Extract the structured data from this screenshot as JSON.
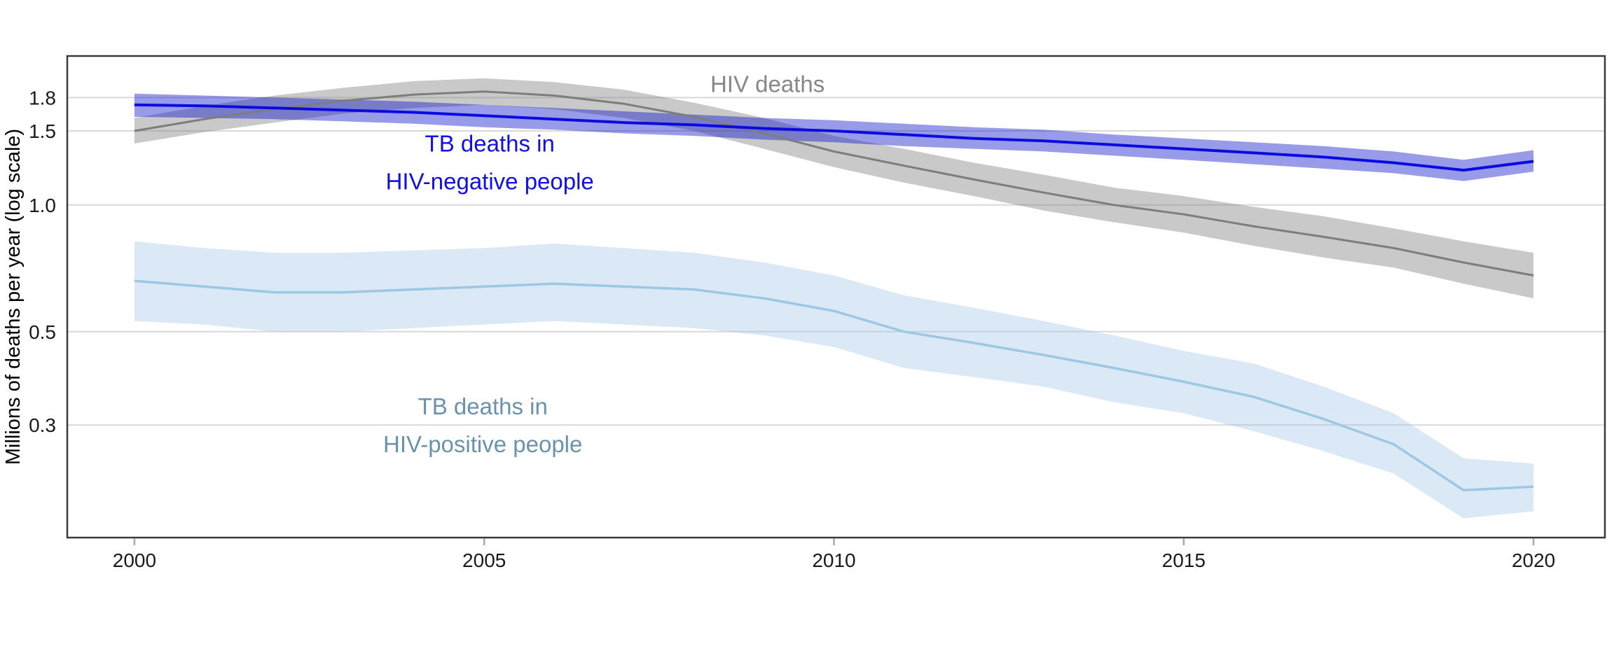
{
  "chart_data": {
    "type": "line",
    "title": "",
    "ylabel": "Millions of deaths per year (log scale)",
    "xlabel": "",
    "yscale": "log",
    "grid": "horizontal-only",
    "legend": "none-direct-labels",
    "xlim": [
      1999.04,
      2021.02
    ],
    "ylim": [
      0.162,
      2.26
    ],
    "yticks": [
      {
        "value": 1.8,
        "label": "1.8"
      },
      {
        "value": 1.5,
        "label": "1.5"
      },
      {
        "value": 1.0,
        "label": "1.0"
      },
      {
        "value": 0.5,
        "label": "0.5"
      },
      {
        "value": 0.3,
        "label": "0.3"
      }
    ],
    "xticks": [
      {
        "value": 2000,
        "label": "2000"
      },
      {
        "value": 2005,
        "label": "2005"
      },
      {
        "value": 2010,
        "label": "2010"
      },
      {
        "value": 2015,
        "label": "2015"
      },
      {
        "value": 2020,
        "label": "2020"
      }
    ],
    "x": [
      2000,
      2001,
      2002,
      2003,
      2004,
      2005,
      2006,
      2007,
      2008,
      2009,
      2010,
      2011,
      2012,
      2013,
      2014,
      2015,
      2016,
      2017,
      2018,
      2019,
      2020
    ],
    "series": [
      {
        "name": "HIV deaths",
        "line_color": "#7d7d7d",
        "band_color": "rgba(127,127,127,0.42)",
        "line_width": 3,
        "values": [
          1.5,
          1.6,
          1.69,
          1.77,
          1.83,
          1.86,
          1.82,
          1.74,
          1.62,
          1.48,
          1.34,
          1.24,
          1.15,
          1.07,
          1.0,
          0.95,
          0.89,
          0.84,
          0.79,
          0.73,
          0.68
        ],
        "lo": [
          1.4,
          1.49,
          1.57,
          1.65,
          1.7,
          1.73,
          1.69,
          1.61,
          1.5,
          1.36,
          1.23,
          1.13,
          1.05,
          0.97,
          0.91,
          0.86,
          0.8,
          0.75,
          0.71,
          0.65,
          0.6
        ],
        "hi": [
          1.61,
          1.72,
          1.82,
          1.9,
          1.97,
          2.0,
          1.96,
          1.88,
          1.75,
          1.61,
          1.46,
          1.36,
          1.26,
          1.18,
          1.1,
          1.05,
          0.99,
          0.94,
          0.88,
          0.82,
          0.77
        ]
      },
      {
        "name": "TB deaths in HIV-negative people",
        "line_color": "#0b0bdf",
        "band_color": "rgba(10,16,200,0.42)",
        "line_width": 4,
        "values": [
          1.73,
          1.72,
          1.7,
          1.68,
          1.66,
          1.63,
          1.6,
          1.57,
          1.55,
          1.52,
          1.5,
          1.47,
          1.44,
          1.42,
          1.39,
          1.36,
          1.33,
          1.3,
          1.26,
          1.21,
          1.27
        ],
        "lo": [
          1.62,
          1.61,
          1.6,
          1.58,
          1.56,
          1.53,
          1.51,
          1.48,
          1.46,
          1.43,
          1.41,
          1.38,
          1.36,
          1.34,
          1.31,
          1.28,
          1.25,
          1.22,
          1.19,
          1.14,
          1.2
        ],
        "hi": [
          1.84,
          1.82,
          1.8,
          1.78,
          1.76,
          1.73,
          1.7,
          1.67,
          1.64,
          1.61,
          1.59,
          1.56,
          1.53,
          1.51,
          1.47,
          1.44,
          1.41,
          1.38,
          1.34,
          1.28,
          1.35
        ]
      },
      {
        "name": "TB deaths in HIV-positive people",
        "line_color": "#9cc8e2",
        "band_color": "rgba(158,196,228,0.38)",
        "line_width": 3.5,
        "values": [
          0.66,
          0.64,
          0.62,
          0.62,
          0.63,
          0.64,
          0.65,
          0.64,
          0.63,
          0.6,
          0.56,
          0.5,
          0.47,
          0.44,
          0.41,
          0.38,
          0.35,
          0.31,
          0.27,
          0.21,
          0.214
        ],
        "lo": [
          0.53,
          0.52,
          0.5,
          0.5,
          0.51,
          0.52,
          0.53,
          0.52,
          0.51,
          0.49,
          0.46,
          0.41,
          0.39,
          0.37,
          0.34,
          0.32,
          0.29,
          0.26,
          0.23,
          0.18,
          0.187
        ],
        "hi": [
          0.82,
          0.79,
          0.77,
          0.77,
          0.78,
          0.79,
          0.81,
          0.79,
          0.77,
          0.73,
          0.68,
          0.61,
          0.57,
          0.53,
          0.49,
          0.45,
          0.42,
          0.37,
          0.32,
          0.25,
          0.243
        ]
      }
    ],
    "annotations": [
      {
        "text": [
          "HIV deaths"
        ],
        "x": 2009.05,
        "y": 1.94,
        "color": "#878787"
      },
      {
        "text": [
          "TB deaths in",
          "HIV-negative people"
        ],
        "x": 2005.08,
        "y": 1.4,
        "color": "#1010e6"
      },
      {
        "text": [
          "TB deaths in",
          "HIV-positive people"
        ],
        "x": 2004.98,
        "y": 0.332,
        "color": "#6a92ab"
      }
    ],
    "style": {
      "gridline_color": "#d9d9d9",
      "panel_border_color": "#3a3a3a",
      "tick_mark_color": "#a9a9a9",
      "tick_label_color": "#1a1a1a",
      "axis_title_color": "#000000"
    }
  }
}
